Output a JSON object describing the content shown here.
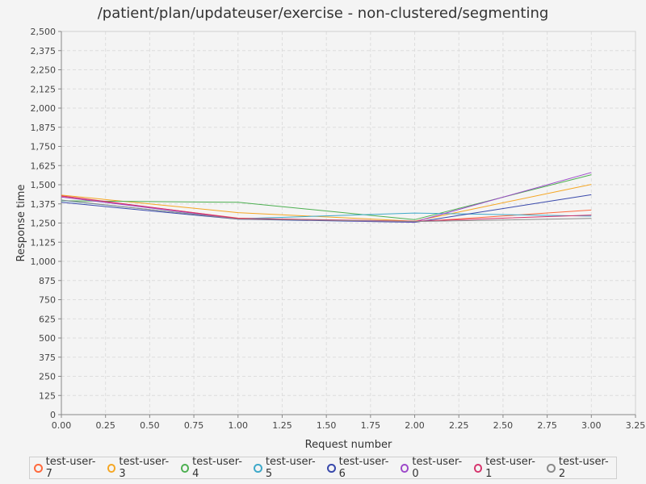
{
  "chart_data": {
    "type": "line",
    "title": "/patient/plan/updateuser/exercise - non-clustered/segmenting",
    "xlabel": "Request number",
    "ylabel": "Response time",
    "xlim": [
      0,
      3.25
    ],
    "ylim": [
      0,
      2500
    ],
    "x_ticks": [
      "0.00",
      "0.25",
      "0.50",
      "0.75",
      "1.00",
      "1.25",
      "1.50",
      "1.75",
      "2.00",
      "2.25",
      "2.50",
      "2.75",
      "3.00",
      "3.25"
    ],
    "y_ticks": [
      "0",
      "125",
      "250",
      "375",
      "500",
      "625",
      "750",
      "875",
      "1,000",
      "1,125",
      "1,250",
      "1,375",
      "1,500",
      "1,625",
      "1,750",
      "1,875",
      "2,000",
      "2,125",
      "2,250",
      "2,375",
      "2,500"
    ],
    "grid": true,
    "legend_position": "bottom",
    "x": [
      0,
      1,
      2,
      3
    ],
    "series": [
      {
        "name": "test-user-7",
        "color": "#ff6a3d",
        "values": [
          1425,
          1282,
          1258,
          1335
        ]
      },
      {
        "name": "test-user-3",
        "color": "#f5a623",
        "values": [
          1432,
          1318,
          1262,
          1502
        ]
      },
      {
        "name": "test-user-4",
        "color": "#4caf50",
        "values": [
          1395,
          1385,
          1272,
          1565
        ]
      },
      {
        "name": "test-user-5",
        "color": "#3fa9c9",
        "values": [
          1398,
          1278,
          1315,
          1295
        ]
      },
      {
        "name": "test-user-6",
        "color": "#3949ab",
        "values": [
          1385,
          1275,
          1255,
          1435
        ]
      },
      {
        "name": "test-user-0",
        "color": "#9c47c9",
        "values": [
          1420,
          1278,
          1258,
          1580
        ]
      },
      {
        "name": "test-user-1",
        "color": "#d6336c",
        "values": [
          1428,
          1280,
          1262,
          1302
        ]
      },
      {
        "name": "test-user-2",
        "color": "#8a8a8a",
        "values": [
          1400,
          1276,
          1260,
          1280
        ]
      }
    ]
  }
}
